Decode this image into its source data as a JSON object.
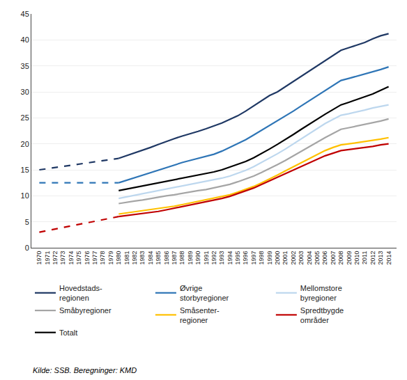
{
  "chart_data": {
    "type": "line",
    "x": [
      1970,
      1980,
      1981,
      1982,
      1983,
      1984,
      1985,
      1986,
      1987,
      1988,
      1989,
      1990,
      1991,
      1992,
      1993,
      1994,
      1995,
      1996,
      1997,
      1998,
      1999,
      2000,
      2001,
      2002,
      2003,
      2004,
      2005,
      2006,
      2007,
      2008,
      2009,
      2010,
      2011,
      2012,
      2013,
      2014
    ],
    "series": [
      {
        "name": "Hovedstads-\nregionen",
        "color": "#1F3864",
        "values": [
          15.0,
          17.2,
          17.7,
          18.2,
          18.7,
          19.3,
          19.9,
          20.5,
          21.0,
          21.5,
          21.9,
          22.4,
          22.9,
          23.4,
          24.0,
          24.7,
          25.4,
          26.3,
          27.3,
          28.3,
          29.3,
          30.0,
          31.0,
          32.0,
          33.0,
          34.0,
          35.0,
          36.0,
          37.0,
          38.0,
          38.5,
          39.0,
          39.5,
          40.2,
          40.8,
          41.2
        ]
      },
      {
        "name": "Øvrige\nstorbyregioner",
        "color": "#2E75B6",
        "values": [
          12.5,
          12.5,
          13.0,
          13.5,
          14.0,
          14.5,
          15.0,
          15.5,
          16.0,
          16.4,
          16.8,
          17.2,
          17.6,
          18.0,
          18.6,
          19.3,
          20.0,
          20.8,
          21.7,
          22.6,
          23.5,
          24.4,
          25.3,
          26.3,
          27.3,
          28.3,
          29.3,
          30.3,
          31.3,
          32.2,
          32.6,
          33.0,
          33.4,
          33.8,
          34.3,
          34.8
        ]
      },
      {
        "name": "Mellomstore\nbyregioner",
        "color": "#BDD7EE",
        "values": [
          null,
          9.5,
          9.8,
          10.1,
          10.4,
          10.7,
          11.0,
          11.3,
          11.6,
          11.9,
          12.2,
          12.5,
          12.8,
          13.1,
          13.4,
          13.8,
          14.3,
          14.9,
          15.6,
          16.4,
          17.2,
          18.1,
          19.0,
          20.0,
          21.0,
          22.0,
          23.0,
          23.9,
          24.7,
          25.5,
          25.8,
          26.1,
          26.5,
          26.9,
          27.2,
          27.5
        ]
      },
      {
        "name": "Småbyregioner",
        "color": "#A5A5A5",
        "values": [
          null,
          8.5,
          8.8,
          9.0,
          9.2,
          9.5,
          9.7,
          10.0,
          10.2,
          10.5,
          10.7,
          11.0,
          11.2,
          11.5,
          11.8,
          12.2,
          12.7,
          13.2,
          13.8,
          14.5,
          15.2,
          16.0,
          16.8,
          17.7,
          18.6,
          19.5,
          20.4,
          21.2,
          22.0,
          22.8,
          23.1,
          23.4,
          23.7,
          24.0,
          24.4,
          24.8
        ]
      },
      {
        "name": "Småsenter-\nregioner",
        "color": "#FFC000",
        "values": [
          null,
          6.5,
          6.7,
          6.9,
          7.1,
          7.3,
          7.5,
          7.8,
          8.0,
          8.3,
          8.6,
          8.9,
          9.2,
          9.5,
          9.8,
          10.2,
          10.7,
          11.2,
          11.8,
          12.5,
          13.2,
          14.0,
          14.8,
          15.6,
          16.4,
          17.2,
          18.0,
          18.7,
          19.3,
          19.8,
          20.0,
          20.2,
          20.4,
          20.6,
          20.9,
          21.2
        ]
      },
      {
        "name": "Spredtbygde\nområder",
        "color": "#C00000",
        "values": [
          3.0,
          6.0,
          6.2,
          6.4,
          6.6,
          6.8,
          7.0,
          7.3,
          7.6,
          7.9,
          8.2,
          8.5,
          8.8,
          9.1,
          9.5,
          9.9,
          10.4,
          10.9,
          11.5,
          12.2,
          12.9,
          13.6,
          14.3,
          15.0,
          15.7,
          16.4,
          17.1,
          17.7,
          18.2,
          18.7,
          18.9,
          19.1,
          19.3,
          19.5,
          19.8,
          20.0
        ]
      },
      {
        "name": "Totalt",
        "color": "#000000",
        "values": [
          null,
          11.0,
          11.3,
          11.6,
          11.9,
          12.2,
          12.5,
          12.8,
          13.1,
          13.4,
          13.7,
          14.0,
          14.3,
          14.6,
          15.0,
          15.5,
          16.0,
          16.6,
          17.3,
          18.1,
          19.0,
          19.9,
          20.8,
          21.8,
          22.8,
          23.8,
          24.8,
          25.7,
          26.6,
          27.5,
          28.0,
          28.5,
          29.0,
          29.6,
          30.3,
          31.0
        ]
      }
    ],
    "xlim": [
      1969,
      2015
    ],
    "xticks": [
      1970,
      1971,
      1972,
      1973,
      1974,
      1975,
      1976,
      1977,
      1978,
      1979,
      1980,
      1981,
      1982,
      1983,
      1984,
      1985,
      1986,
      1987,
      1988,
      1989,
      1990,
      1991,
      1992,
      1993,
      1994,
      1995,
      1996,
      1997,
      1998,
      1999,
      2000,
      2001,
      2002,
      2003,
      2004,
      2005,
      2006,
      2007,
      2008,
      2009,
      2010,
      2011,
      2012,
      2013,
      2014
    ],
    "ylim": [
      0,
      45
    ],
    "yticks": [
      0,
      5,
      10,
      15,
      20,
      25,
      30,
      35,
      40,
      45
    ],
    "grid": "y",
    "legend": "bottom",
    "annotations": [
      "Kilde: SSB. Beregninger: KMD"
    ]
  }
}
